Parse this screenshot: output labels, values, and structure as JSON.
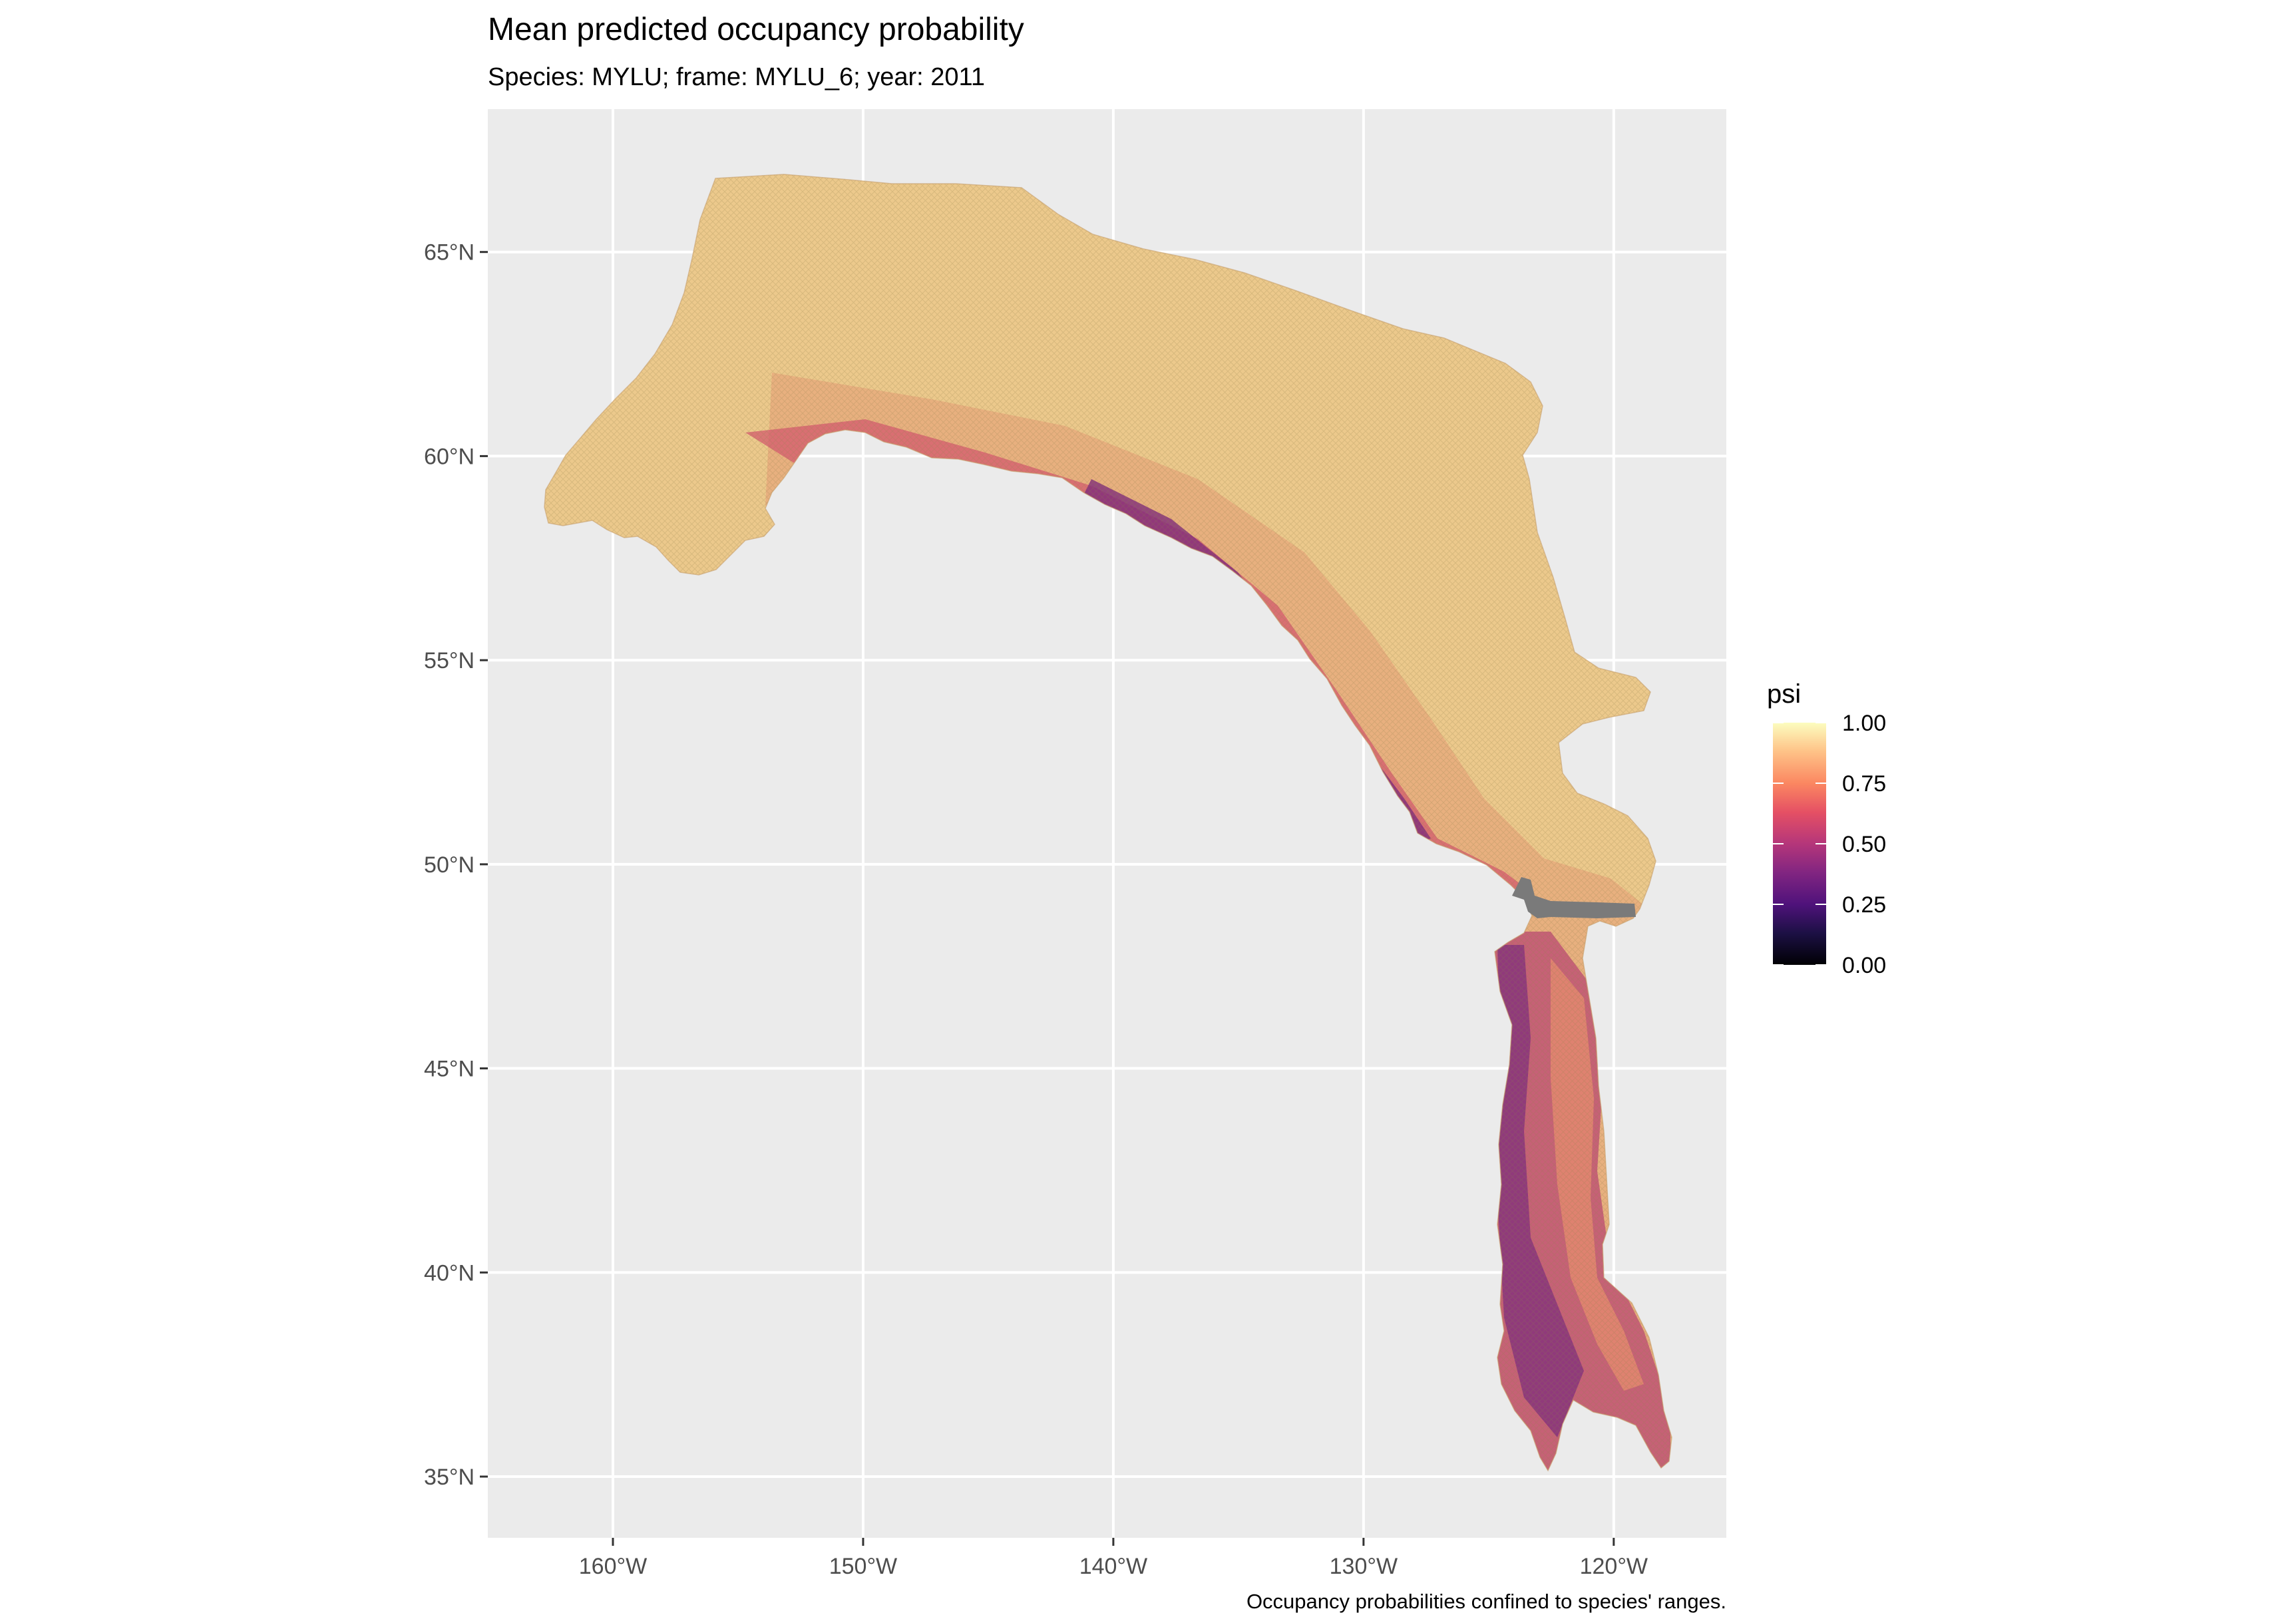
{
  "chart_data": {
    "type": "heatmap",
    "title": "Mean predicted occupancy probability",
    "subtitle": "Species: MYLU; frame: MYLU_6; year: 2011",
    "caption": "Occupancy probabilities confined to species' ranges.",
    "xlabel": "",
    "ylabel": "",
    "xlim": [
      -165,
      -115.5
    ],
    "ylim": [
      33.5,
      68.5
    ],
    "x_ticks": [
      -160,
      -150,
      -140,
      -130,
      -120
    ],
    "x_tick_labels": [
      "160°W",
      "150°W",
      "140°W",
      "130°W",
      "120°W"
    ],
    "y_ticks": [
      35,
      40,
      45,
      50,
      55,
      60,
      65
    ],
    "y_tick_labels": [
      "35°N",
      "40°N",
      "45°N",
      "50°N",
      "55°N",
      "60°N",
      "65°N"
    ],
    "grid": true,
    "legend": {
      "title": "psi",
      "position": "right",
      "palette": "magma",
      "limits": [
        0,
        1
      ],
      "breaks": [
        0,
        0.25,
        0.5,
        0.75,
        1
      ],
      "labels": [
        "0.00",
        "0.25",
        "0.50",
        "0.75",
        "1.00"
      ]
    },
    "region_description": {
      "high_values_area": "Alaska interior and Yukon/northern BC (psi ~0.85-0.95)",
      "low_values_area": "Pacific coastal margin and Cascade/Sierra slopes (psi ~0.3-0.6)",
      "na_band": "grey band near 49°N border"
    }
  },
  "colors": {
    "panel_background": "#ebebeb",
    "grid": "#ffffff",
    "tick_text": "#4d4d4d",
    "na_cells": "#7a7a7a",
    "high": "#f0d58f",
    "mid": "#e0706a",
    "low": "#7a2a78"
  }
}
